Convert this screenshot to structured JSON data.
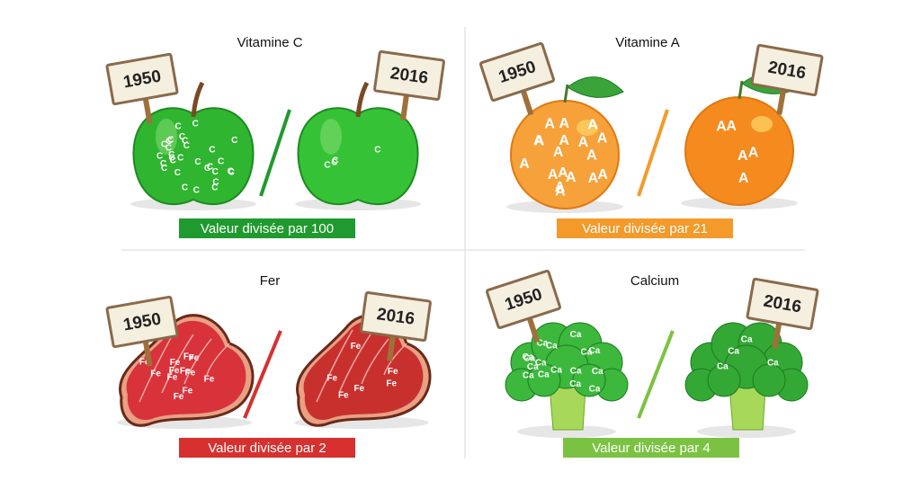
{
  "panels": [
    {
      "title": "Vitamine C",
      "before": "1950",
      "after": "2016",
      "symbol": "C",
      "caption": "Valeur divisée par 100",
      "color": "#1f9a2e"
    },
    {
      "title": "Vitamine A",
      "before": "1950",
      "after": "2016",
      "symbol": "A",
      "caption": "Valeur divisée par 21",
      "color": "#f39a2b"
    },
    {
      "title": "Fer",
      "before": "1950",
      "after": "2016",
      "symbol": "Fe",
      "caption": "Valeur divisée par 2",
      "color": "#d6312f"
    },
    {
      "title": "Calcium",
      "before": "1950",
      "after": "2016",
      "symbol": "Ca",
      "caption": "Valeur divisée par 4",
      "color": "#7cc242"
    }
  ]
}
